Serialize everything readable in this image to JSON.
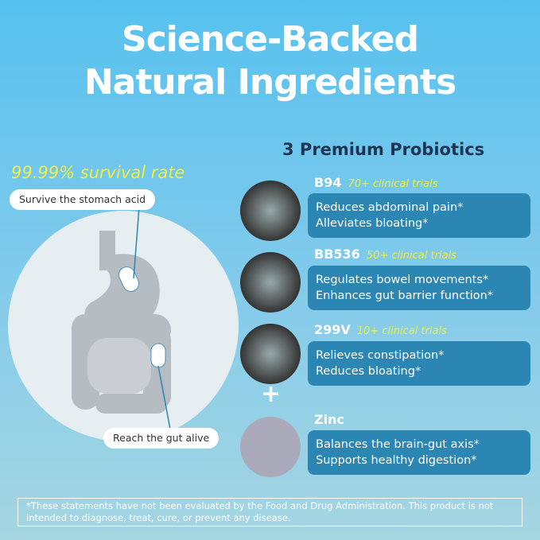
{
  "header": {
    "title_lines": [
      "Science-Backed",
      "Natural Ingredients"
    ]
  },
  "left": {
    "survival": "99.99% survival rate",
    "labels": [
      "Survive the stomach acid",
      "Reach the gut alive"
    ]
  },
  "right": {
    "heading": "3 Premium Probiotics",
    "plus": "+",
    "items": [
      {
        "name": "B94",
        "trials": "70+ clinical trials",
        "benefits": [
          "Reduces abdominal pain*",
          "Alleviates bloating*"
        ]
      },
      {
        "name": "BB536",
        "trials": "50+ clinical trials",
        "benefits": [
          "Regulates bowel movements*",
          "Enhances gut barrier function*"
        ]
      },
      {
        "name": "299V",
        "trials": "10+ clinical trials",
        "benefits": [
          "Relieves constipation*",
          "Reduces bloating*"
        ]
      },
      {
        "name": "Zinc",
        "benefits": [
          "Balances the brain-gut axis*",
          "Supports healthy digestion*"
        ]
      }
    ]
  },
  "footnote": [
    "*These statements have not been evaluated by the Food and Drug Administration. This product is not",
    "intended to diagnose, treat, cure, or prevent any disease."
  ]
}
